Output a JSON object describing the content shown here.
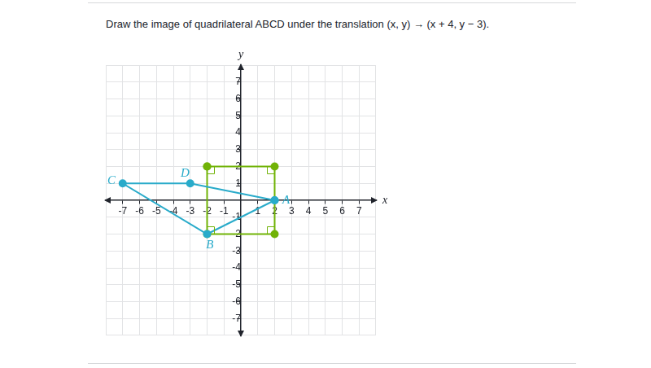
{
  "chart_data": {
    "type": "scatter",
    "title": "Draw the image of quadrilateral ABCD under the translation (x, y) → (x + 4, y − 3).",
    "xlabel": "x",
    "ylabel": "y",
    "xlim": [
      -8,
      8
    ],
    "ylim": [
      -8,
      8
    ],
    "xticks": [
      -7,
      -6,
      -5,
      -4,
      -3,
      -2,
      -1,
      1,
      2,
      3,
      4,
      5,
      6,
      7
    ],
    "yticks": [
      -7,
      -6,
      -5,
      -4,
      -3,
      -2,
      -1,
      1,
      2,
      3,
      4,
      5,
      6,
      7
    ],
    "grid": true,
    "series": [
      {
        "type": "polygon",
        "color": "#29abca",
        "marker": "circle",
        "point_labels": [
          "A",
          "B",
          "C",
          "D"
        ],
        "x": [
          2,
          -2,
          -7,
          -3
        ],
        "values": [
          0,
          -2,
          1,
          1
        ]
      },
      {
        "type": "polygon",
        "color": "#71b307",
        "marker": "circle",
        "x": [
          -2,
          2,
          2,
          -2
        ],
        "values": [
          2,
          2,
          -2,
          -2
        ]
      }
    ]
  }
}
